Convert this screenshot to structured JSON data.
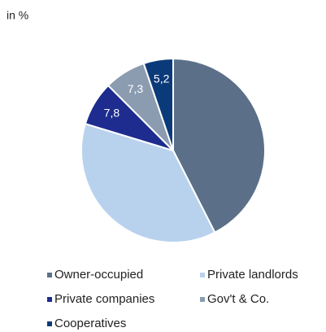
{
  "chart_data": {
    "type": "pie",
    "subtitle": "in %",
    "categories": [
      "Owner-occupied",
      "Private landlords",
      "Private companies",
      "Gov't & Co.",
      "Cooperatives"
    ],
    "values": [
      42.5,
      37.2,
      7.8,
      7.3,
      5.2
    ],
    "value_labels": [
      null,
      null,
      "7,8",
      "7,3",
      "5,2"
    ],
    "colors": [
      "#5b7088",
      "#b8d2ee",
      "#1d2c8e",
      "#8b9cb1",
      "#0b3a7a"
    ],
    "legend": "bottom"
  }
}
